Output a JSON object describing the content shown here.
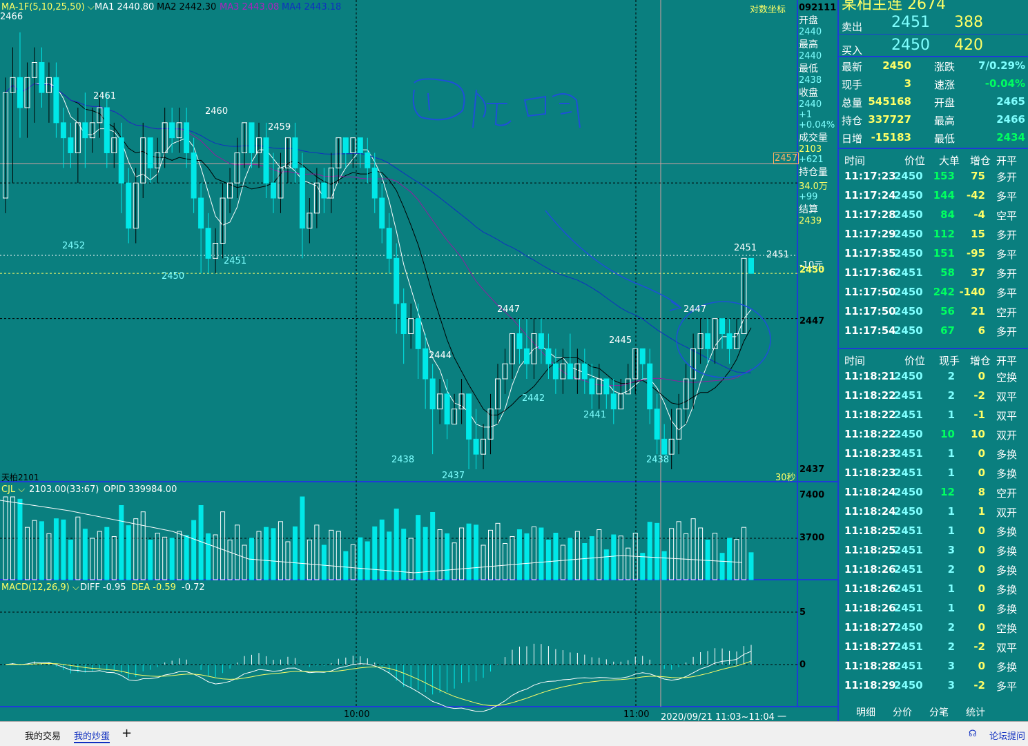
{
  "main_header": {
    "ma_name": "MA-1F(5,10,25,50)",
    "ma1": "MA1 2440.80",
    "ma2": "MA2 2442.30",
    "ma3": "MA3 2443.08",
    "ma4": "MA4 2443.18",
    "log_coord": "对数坐标",
    "period": "30秒",
    "contract_label": "天柏2101"
  },
  "vol_header": {
    "name": "CJL",
    "text": "2103.00(33:67)",
    "opid": "OPID 339984.00"
  },
  "macd_header": {
    "name": "MACD(12,26,9)",
    "diff": "DIFF -0.95",
    "dea": "DEA -0.59",
    "macd": "-0.72"
  },
  "time_axis": {
    "t1": "10:00",
    "t2": "11:00",
    "range": "2020/09/21 11:03~11:04 一"
  },
  "price_axis": {
    "p2457": "2457",
    "p2451": "2451",
    "yuan": "-10元",
    "p2450": "2450",
    "p2447": "2447",
    "p2437": "2437"
  },
  "vol_axis": {
    "a": "7400",
    "b": "3700"
  },
  "macd_axis": {
    "a": "5",
    "b": "0"
  },
  "info_column": {
    "date": "092111",
    "items": [
      {
        "label": "开盘",
        "value": "2440"
      },
      {
        "label": "最高",
        "value": "2440"
      },
      {
        "label": "最低",
        "value": "2438"
      },
      {
        "label": "收盘",
        "value": "2440"
      },
      {
        "label": "",
        "value": "+1"
      },
      {
        "label": "",
        "value": "+0.04%"
      },
      {
        "label": "成交量",
        "value": "2103"
      },
      {
        "label": "",
        "value": "+621"
      },
      {
        "label": "持仓量",
        "value": "34.0万"
      },
      {
        "label": "",
        "value": "+99"
      },
      {
        "label": "结算",
        "value": "2439"
      }
    ]
  },
  "quote": {
    "title": "某柏主连  2674",
    "sell": {
      "label": "卖出",
      "price": "2451",
      "volume": "388"
    },
    "buy": {
      "label": "买入",
      "price": "2450",
      "volume": "420"
    },
    "stats": [
      {
        "l1": "最新",
        "v1": "2450",
        "l2": "涨跌",
        "v2": "7/0.29%"
      },
      {
        "l1": "现手",
        "v1": "3",
        "l2": "速涨",
        "v2": "-0.04%"
      },
      {
        "l1": "总量",
        "v1": "545168",
        "l2": "开盘",
        "v2": "2465"
      },
      {
        "l1": "持仓",
        "v1": "337727",
        "l2": "最高",
        "v2": "2466"
      },
      {
        "l1": "日增",
        "v1": "-15183",
        "l2": "最低",
        "v2": "2434"
      }
    ]
  },
  "big_orders": {
    "headers": [
      "时间",
      "价位",
      "大单",
      "增仓",
      "开平"
    ],
    "rows": [
      [
        "11:17:23",
        "2450",
        "153",
        "75",
        "多开"
      ],
      [
        "11:17:24",
        "2450",
        "144",
        "-42",
        "多平"
      ],
      [
        "11:17:28",
        "2450",
        "84",
        "-4",
        "空平"
      ],
      [
        "11:17:29",
        "2450",
        "112",
        "15",
        "多开"
      ],
      [
        "11:17:35",
        "2450",
        "151",
        "-95",
        "多平"
      ],
      [
        "11:17:36",
        "2451",
        "58",
        "37",
        "多开"
      ],
      [
        "11:17:50",
        "2450",
        "242",
        "-140",
        "多平"
      ],
      [
        "11:17:50",
        "2450",
        "56",
        "21",
        "空开"
      ],
      [
        "11:17:54",
        "2450",
        "67",
        "6",
        "多开"
      ]
    ]
  },
  "ticks": {
    "headers": [
      "时间",
      "价位",
      "现手",
      "增仓",
      "开平"
    ],
    "rows": [
      [
        "11:18:21",
        "2450",
        "2",
        "0",
        "空换"
      ],
      [
        "11:18:22",
        "2451",
        "2",
        "-2",
        "双平"
      ],
      [
        "11:18:22",
        "2451",
        "1",
        "-1",
        "双平"
      ],
      [
        "11:18:22",
        "2450",
        "10",
        "10",
        "双开"
      ],
      [
        "11:18:23",
        "2451",
        "1",
        "0",
        "多换"
      ],
      [
        "11:18:23",
        "2451",
        "1",
        "0",
        "多换"
      ],
      [
        "11:18:24",
        "2450",
        "12",
        "8",
        "空开"
      ],
      [
        "11:18:24",
        "2450",
        "1",
        "1",
        "双开"
      ],
      [
        "11:18:25",
        "2451",
        "1",
        "0",
        "多换"
      ],
      [
        "11:18:25",
        "2451",
        "3",
        "0",
        "多换"
      ],
      [
        "11:18:26",
        "2451",
        "2",
        "0",
        "多换"
      ],
      [
        "11:18:26",
        "2451",
        "1",
        "0",
        "多换"
      ],
      [
        "11:18:26",
        "2451",
        "1",
        "0",
        "多换"
      ],
      [
        "11:18:27",
        "2450",
        "2",
        "0",
        "空换"
      ],
      [
        "11:18:27",
        "2451",
        "2",
        "-2",
        "双平"
      ],
      [
        "11:18:28",
        "2451",
        "3",
        "0",
        "多换"
      ],
      [
        "11:18:29",
        "2450",
        "3",
        "-2",
        "多平"
      ]
    ]
  },
  "bottom_tabs": [
    "明细",
    "分价",
    "分笔",
    "统计"
  ],
  "taskbar": {
    "t1": "我的交易",
    "t2": "我的炒蛋",
    "plus": "+",
    "forum": "论坛提问"
  },
  "colors": {
    "bg": "#0a7f7f",
    "up": "#ffffff",
    "down": "#00e8e8",
    "ma1": "#ffffff",
    "ma2": "#000000",
    "ma3": "#9020a0",
    "ma4": "#1030c0"
  },
  "chart_data": {
    "type": "candlestick",
    "y_range": [
      2437,
      2467
    ],
    "price_labels": [
      {
        "text": "2466",
        "value": 2466
      },
      {
        "text": "2461",
        "value": 2461
      },
      {
        "text": "2460",
        "value": 2460
      },
      {
        "text": "2459",
        "value": 2459
      },
      {
        "text": "2452",
        "value": 2452
      },
      {
        "text": "2451",
        "value": 2451
      },
      {
        "text": "2450",
        "value": 2450
      },
      {
        "text": "2447",
        "value": 2447
      },
      {
        "text": "2444",
        "value": 2444
      },
      {
        "text": "2445",
        "value": 2445
      },
      {
        "text": "2442",
        "value": 2442
      },
      {
        "text": "2441",
        "value": 2441
      },
      {
        "text": "2438",
        "value": 2438
      },
      {
        "text": "2437",
        "value": 2437
      },
      {
        "text": "2438",
        "value": 2438
      },
      {
        "text": "2447",
        "value": 2447
      },
      {
        "text": "2451",
        "value": 2451
      }
    ],
    "candles": [
      [
        2455,
        2462,
        2454,
        2463
      ],
      [
        2462,
        2463,
        2456,
        2465
      ],
      [
        2463,
        2461,
        2459,
        2466
      ],
      [
        2461,
        2463,
        2459,
        2464
      ],
      [
        2463,
        2464,
        2460,
        2465
      ],
      [
        2464,
        2462,
        2461,
        2465
      ],
      [
        2462,
        2463,
        2460,
        2464
      ],
      [
        2463,
        2460,
        2459,
        2464
      ],
      [
        2460,
        2459,
        2457,
        2461
      ],
      [
        2459,
        2458,
        2457,
        2460
      ],
      [
        2458,
        2460,
        2456,
        2461
      ],
      [
        2460,
        2459,
        2457,
        2462
      ],
      [
        2459,
        2460,
        2458,
        2461
      ],
      [
        2460,
        2461,
        2459,
        2462
      ],
      [
        2461,
        2458,
        2457,
        2462
      ],
      [
        2458,
        2459,
        2457,
        2460
      ],
      [
        2459,
        2456,
        2454,
        2460
      ],
      [
        2456,
        2453,
        2452,
        2457
      ],
      [
        2453,
        2456,
        2452,
        2457
      ],
      [
        2456,
        2459,
        2455,
        2460
      ],
      [
        2459,
        2457,
        2456,
        2459
      ],
      [
        2457,
        2458,
        2456,
        2459
      ],
      [
        2458,
        2460,
        2457,
        2461
      ],
      [
        2460,
        2459,
        2458,
        2461
      ],
      [
        2459,
        2460,
        2458,
        2461
      ],
      [
        2460,
        2458,
        2457,
        2461
      ],
      [
        2458,
        2455,
        2454,
        2459
      ],
      [
        2455,
        2453,
        2450,
        2456
      ],
      [
        2453,
        2451,
        2450,
        2454
      ],
      [
        2451,
        2452,
        2450,
        2453
      ],
      [
        2452,
        2455,
        2451,
        2456
      ],
      [
        2455,
        2456,
        2454,
        2457
      ],
      [
        2456,
        2458,
        2455,
        2459
      ],
      [
        2458,
        2460,
        2457,
        2460
      ],
      [
        2460,
        2458,
        2457,
        2460
      ],
      [
        2458,
        2459,
        2457,
        2460
      ],
      [
        2459,
        2456,
        2455,
        2460
      ],
      [
        2456,
        2455,
        2454,
        2458
      ],
      [
        2455,
        2457,
        2454,
        2458
      ],
      [
        2457,
        2459,
        2456,
        2459
      ],
      [
        2459,
        2457,
        2456,
        2460
      ],
      [
        2457,
        2453,
        2451,
        2458
      ],
      [
        2453,
        2454,
        2452,
        2455
      ],
      [
        2454,
        2456,
        2453,
        2457
      ],
      [
        2456,
        2455,
        2454,
        2457
      ],
      [
        2455,
        2457,
        2454,
        2458
      ],
      [
        2457,
        2459,
        2456,
        2459
      ],
      [
        2459,
        2458,
        2457,
        2459
      ],
      [
        2458,
        2459,
        2457,
        2459
      ],
      [
        2459,
        2458,
        2457,
        2459
      ],
      [
        2458,
        2457,
        2456,
        2459
      ],
      [
        2457,
        2455,
        2454,
        2458
      ],
      [
        2455,
        2453,
        2452,
        2456
      ],
      [
        2453,
        2451,
        2450,
        2454
      ],
      [
        2451,
        2448,
        2446,
        2452
      ],
      [
        2448,
        2446,
        2444,
        2449
      ],
      [
        2446,
        2447,
        2445,
        2448
      ],
      [
        2447,
        2445,
        2443,
        2448
      ],
      [
        2445,
        2443,
        2441,
        2446
      ],
      [
        2443,
        2441,
        2438,
        2444
      ],
      [
        2441,
        2442,
        2440,
        2443
      ],
      [
        2442,
        2440,
        2439,
        2443
      ],
      [
        2440,
        2441,
        2440,
        2442
      ],
      [
        2441,
        2442,
        2440,
        2443
      ],
      [
        2442,
        2439,
        2437,
        2442
      ],
      [
        2439,
        2438,
        2437,
        2441
      ],
      [
        2438,
        2439,
        2437,
        2440
      ],
      [
        2439,
        2441,
        2438,
        2442
      ],
      [
        2441,
        2443,
        2440,
        2444
      ],
      [
        2443,
        2444,
        2442,
        2445
      ],
      [
        2444,
        2446,
        2443,
        2446
      ],
      [
        2446,
        2445,
        2444,
        2447
      ],
      [
        2445,
        2444,
        2443,
        2447
      ],
      [
        2444,
        2446,
        2443,
        2447
      ],
      [
        2446,
        2445,
        2444,
        2447
      ],
      [
        2445,
        2444,
        2443,
        2446
      ],
      [
        2444,
        2443,
        2442,
        2445
      ],
      [
        2443,
        2444,
        2442,
        2445
      ],
      [
        2444,
        2443,
        2443,
        2446
      ],
      [
        2443,
        2444,
        2442,
        2445
      ],
      [
        2444,
        2443,
        2442,
        2445
      ],
      [
        2443,
        2442,
        2441,
        2444
      ],
      [
        2442,
        2443,
        2441,
        2444
      ],
      [
        2443,
        2442,
        2441,
        2443
      ],
      [
        2442,
        2441,
        2440,
        2443
      ],
      [
        2441,
        2442,
        2441,
        2443
      ],
      [
        2442,
        2443,
        2442,
        2444
      ],
      [
        2443,
        2445,
        2442,
        2445
      ],
      [
        2445,
        2444,
        2443,
        2445
      ],
      [
        2444,
        2441,
        2440,
        2445
      ],
      [
        2441,
        2439,
        2438,
        2442
      ],
      [
        2439,
        2438,
        2438,
        2440
      ],
      [
        2438,
        2439,
        2437,
        2441
      ],
      [
        2439,
        2441,
        2438,
        2442
      ],
      [
        2441,
        2443,
        2440,
        2444
      ],
      [
        2443,
        2445,
        2441,
        2446
      ],
      [
        2445,
        2446,
        2444,
        2447
      ],
      [
        2446,
        2445,
        2444,
        2447
      ],
      [
        2445,
        2447,
        2444,
        2447
      ],
      [
        2447,
        2446,
        2445,
        2447
      ],
      [
        2446,
        2445,
        2444,
        2447
      ],
      [
        2445,
        2446,
        2445,
        2447
      ],
      [
        2446,
        2451,
        2446,
        2451
      ],
      [
        2451,
        2450,
        2450,
        2451
      ]
    ]
  }
}
